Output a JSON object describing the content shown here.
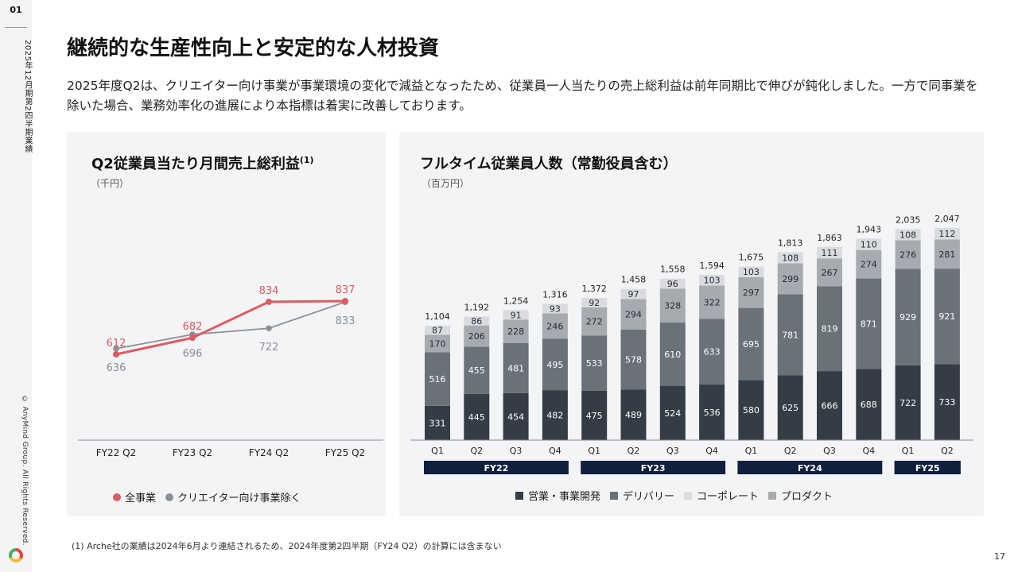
{
  "sidebar": {
    "page_label": "01",
    "period": "2025年12月期第2四半期業績",
    "copyright": "© AnyMind Group. All Rights Reserved."
  },
  "header": {
    "title": "継続的な生産性向上と安定的な人材投資",
    "lead": "2025年度Q2は、クリエイター向け事業が事業環境の変化で減益となったため、従業員一人当たりの売上総利益は前年同期比で伸びが鈍化しました。一方で同事業を除いた場合、業務効率化の進展により本指標は着実に改善しております。"
  },
  "left_chart": {
    "title": "Q2従業員当たり月間売上総利益",
    "title_sup": "(1)",
    "unit": "（千円）"
  },
  "right_chart": {
    "title": "フルタイム従業員人数（常勤役員含む）",
    "unit": "（百万円）"
  },
  "footnote": "(1) Arche社の業績は2024年6月より連結されるため、2024年度第2四半期（FY24 Q2）の計算には含まない",
  "slide_number": "17",
  "chart_data": [
    {
      "type": "line",
      "categories": [
        "FY22 Q2",
        "FY23 Q2",
        "FY24 Q2",
        "FY25 Q2"
      ],
      "series": [
        {
          "name": "全事業",
          "color": "#e05a5f",
          "values": [
            612,
            682,
            834,
            837
          ]
        },
        {
          "name": "クリエイター向け事業除く",
          "color": "#8c8f94",
          "values": [
            636,
            696,
            722,
            833
          ]
        }
      ]
    },
    {
      "type": "bar",
      "stacked": true,
      "categories": [
        "Q1",
        "Q2",
        "Q3",
        "Q4",
        "Q1",
        "Q2",
        "Q3",
        "Q4",
        "Q1",
        "Q2",
        "Q3",
        "Q4",
        "Q1",
        "Q2"
      ],
      "groups": [
        {
          "label": "FY22",
          "count": 4
        },
        {
          "label": "FY23",
          "count": 4
        },
        {
          "label": "FY24",
          "count": 4
        },
        {
          "label": "FY25",
          "count": 2
        }
      ],
      "totals": [
        "1,104",
        "1,192",
        "1,254",
        "1,316",
        "1,372",
        "1,458",
        "1,558",
        "1,594",
        "1,675",
        "1,813",
        "1,863",
        "1,943",
        "2,035",
        "2,047"
      ],
      "series": [
        {
          "name": "営業・事業開発",
          "color": "#343c46",
          "label_color": "#ffffff",
          "values": [
            331,
            445,
            454,
            482,
            475,
            489,
            524,
            536,
            580,
            625,
            666,
            688,
            722,
            733
          ]
        },
        {
          "name": "デリバリー",
          "color": "#6b7179",
          "label_color": "#ffffff",
          "values": [
            516,
            455,
            481,
            495,
            533,
            578,
            610,
            633,
            695,
            781,
            819,
            871,
            929,
            921
          ]
        },
        {
          "name": "プロダクト",
          "color": "#a7abb0",
          "label_color": "#1f2a37",
          "values": [
            170,
            206,
            228,
            246,
            272,
            294,
            328,
            322,
            297,
            299,
            267,
            274,
            276,
            281
          ]
        },
        {
          "name": "コーポレート",
          "color": "#d9dbde",
          "label_color": "#1f2a37",
          "values": [
            87,
            86,
            91,
            93,
            92,
            97,
            96,
            103,
            103,
            108,
            111,
            110,
            108,
            112
          ]
        }
      ],
      "legend_order": [
        "営業・事業開発",
        "デリバリー",
        "コーポレート",
        "プロダクト"
      ]
    }
  ]
}
